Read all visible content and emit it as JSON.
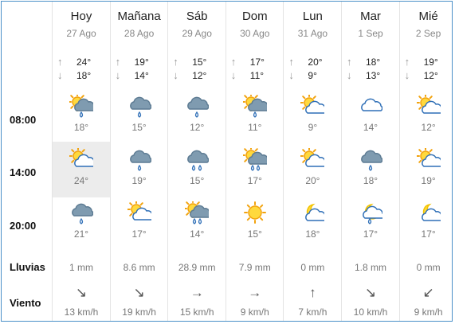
{
  "row_labels": {
    "h1": "08:00",
    "h2": "14:00",
    "h3": "20:00",
    "rain": "Lluvias",
    "wind": "Viento"
  },
  "days": [
    {
      "name": "Hoy",
      "date": "27 Ago",
      "max": "24°",
      "min": "18°",
      "slots": [
        {
          "icon": "sun-cloud-rain-icon",
          "temp": "18°"
        },
        {
          "icon": "sun-cloud-icon",
          "temp": "24°"
        },
        {
          "icon": "cloud-rain-icon",
          "temp": "21°"
        }
      ],
      "rain": "1 mm",
      "wind_arrow": "↘",
      "wind": "13 km/h"
    },
    {
      "name": "Mañana",
      "date": "28 Ago",
      "max": "19°",
      "min": "14°",
      "slots": [
        {
          "icon": "cloud-rain-icon",
          "temp": "15°"
        },
        {
          "icon": "cloud-rain-icon",
          "temp": "19°"
        },
        {
          "icon": "sun-cloud-icon",
          "temp": "17°"
        }
      ],
      "rain": "8.6 mm",
      "wind_arrow": "↘",
      "wind": "19 km/h"
    },
    {
      "name": "Sáb",
      "date": "29 Ago",
      "max": "15°",
      "min": "12°",
      "slots": [
        {
          "icon": "cloud-rain-icon",
          "temp": "12°"
        },
        {
          "icon": "cloud-heavy-rain-icon",
          "temp": "15°"
        },
        {
          "icon": "sun-cloud-heavy-rain-icon",
          "temp": "14°"
        }
      ],
      "rain": "28.9 mm",
      "wind_arrow": "→",
      "wind": "15 km/h"
    },
    {
      "name": "Dom",
      "date": "30 Ago",
      "max": "17°",
      "min": "11°",
      "slots": [
        {
          "icon": "sun-cloud-rain-icon",
          "temp": "11°"
        },
        {
          "icon": "sun-cloud-heavy-rain-icon",
          "temp": "17°"
        },
        {
          "icon": "sun-icon",
          "temp": "15°"
        }
      ],
      "rain": "7.9 mm",
      "wind_arrow": "→",
      "wind": "9 km/h"
    },
    {
      "name": "Lun",
      "date": "31 Ago",
      "max": "20°",
      "min": "9°",
      "slots": [
        {
          "icon": "sun-cloud-icon",
          "temp": "9°"
        },
        {
          "icon": "sun-cloud-icon",
          "temp": "20°"
        },
        {
          "icon": "moon-cloud-icon",
          "temp": "18°"
        }
      ],
      "rain": "0 mm",
      "wind_arrow": "↑",
      "wind": "7 km/h"
    },
    {
      "name": "Mar",
      "date": "1 Sep",
      "max": "18°",
      "min": "13°",
      "slots": [
        {
          "icon": "cloud-icon",
          "temp": "14°"
        },
        {
          "icon": "cloud-rain-icon",
          "temp": "18°"
        },
        {
          "icon": "moon-cloud-rain-icon",
          "temp": "17°"
        }
      ],
      "rain": "1.8 mm",
      "wind_arrow": "↘",
      "wind": "10 km/h"
    },
    {
      "name": "Mié",
      "date": "2 Sep",
      "max": "19°",
      "min": "12°",
      "slots": [
        {
          "icon": "sun-cloud-icon",
          "temp": "12°"
        },
        {
          "icon": "sun-cloud-icon",
          "temp": "19°"
        },
        {
          "icon": "moon-cloud-icon",
          "temp": "17°"
        }
      ],
      "rain": "0 mm",
      "wind_arrow": "↙",
      "wind": "9 km/h"
    }
  ],
  "highlight": {
    "day": 0,
    "slot": 1
  },
  "colors": {
    "border": "#4a90c8",
    "cloud": "#5d7b93",
    "cloud_light": "#7f9bb0",
    "sun": "#f2a30f",
    "sun_core": "#ffd93d",
    "rain": "#2f6fb7",
    "moon": "#f2c300"
  }
}
